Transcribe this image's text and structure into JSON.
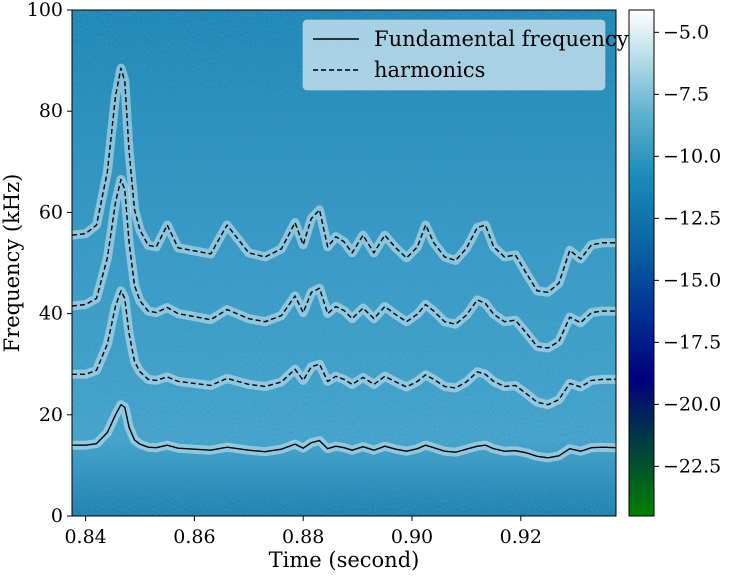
{
  "chart_data": {
    "type": "line",
    "background": "spectrogram",
    "xlabel": "Time (second)",
    "ylabel": "Frequency (kHz)",
    "xlim": [
      0.8375,
      0.9375
    ],
    "ylim": [
      0,
      100
    ],
    "xticks": [
      0.84,
      0.86,
      0.88,
      0.9,
      0.92
    ],
    "xtick_labels": [
      "0.84",
      "0.86",
      "0.88",
      "0.90",
      "0.92"
    ],
    "yticks": [
      0,
      20,
      40,
      60,
      80,
      100
    ],
    "ytick_labels": [
      "0",
      "20",
      "40",
      "60",
      "80",
      "100"
    ],
    "grid": false,
    "legend_position": "top-right",
    "legend": [
      {
        "label": "Fundamental frequency",
        "style": "solid"
      },
      {
        "label": "harmonics",
        "style": "dashed"
      }
    ],
    "colorbar": {
      "range": [
        -24.5,
        -4.1
      ],
      "ticks": [
        -5.0,
        -7.5,
        -10.0,
        -12.5,
        -15.0,
        -17.5,
        -20.0,
        -22.5
      ],
      "tick_labels": [
        "−5.0",
        "−7.5",
        "−10.0",
        "−12.5",
        "−15.0",
        "−17.5",
        "−20.0",
        "−22.5"
      ],
      "colormap": "ocean",
      "colors": [
        "#008000",
        "#00007e",
        "#004fa0",
        "#1183b5",
        "#5ab0cd",
        "#d9eef5",
        "#ffffff"
      ]
    },
    "series": [
      {
        "name": "Fundamental frequency",
        "style": "solid",
        "color": "#000000",
        "x": [
          0.8375,
          0.84,
          0.842,
          0.844,
          0.8455,
          0.8465,
          0.8472,
          0.848,
          0.849,
          0.85,
          0.8515,
          0.853,
          0.855,
          0.857,
          0.86,
          0.863,
          0.866,
          0.87,
          0.873,
          0.876,
          0.8785,
          0.88,
          0.8815,
          0.883,
          0.8845,
          0.886,
          0.8875,
          0.889,
          0.891,
          0.893,
          0.895,
          0.897,
          0.899,
          0.901,
          0.9025,
          0.904,
          0.906,
          0.908,
          0.91,
          0.912,
          0.9135,
          0.915,
          0.917,
          0.919,
          0.921,
          0.923,
          0.925,
          0.927,
          0.929,
          0.931,
          0.933,
          0.935,
          0.9375
        ],
        "y": [
          14.0,
          14.0,
          14.3,
          16.5,
          20.0,
          22.0,
          21.5,
          17.5,
          15.0,
          14.2,
          13.6,
          13.5,
          14.0,
          13.4,
          13.2,
          13.0,
          13.6,
          13.0,
          12.7,
          13.2,
          14.2,
          13.4,
          14.5,
          14.9,
          13.3,
          13.8,
          13.5,
          13.0,
          13.7,
          13.0,
          13.8,
          13.2,
          12.8,
          13.3,
          14.0,
          13.5,
          12.8,
          12.6,
          13.2,
          13.8,
          14.0,
          13.3,
          12.8,
          12.9,
          12.5,
          11.8,
          11.5,
          11.9,
          13.3,
          12.8,
          13.5,
          13.6,
          13.5
        ]
      },
      {
        "name": "harmonics",
        "style": "dashed",
        "color": "#000000",
        "x": [
          0.8375,
          0.84,
          0.842,
          0.844,
          0.8455,
          0.8465,
          0.8472,
          0.848,
          0.849,
          0.85,
          0.8515,
          0.853,
          0.855,
          0.857,
          0.86,
          0.863,
          0.866,
          0.87,
          0.873,
          0.876,
          0.8785,
          0.88,
          0.8815,
          0.883,
          0.8845,
          0.886,
          0.8875,
          0.889,
          0.891,
          0.893,
          0.895,
          0.897,
          0.899,
          0.901,
          0.9025,
          0.904,
          0.906,
          0.908,
          0.91,
          0.912,
          0.9135,
          0.915,
          0.917,
          0.919,
          0.921,
          0.923,
          0.925,
          0.927,
          0.929,
          0.931,
          0.933,
          0.935,
          0.9375
        ],
        "y": [
          28.0,
          28.0,
          28.8,
          34.0,
          41.5,
          44.5,
          43.0,
          36.0,
          30.5,
          28.5,
          27.0,
          26.8,
          27.5,
          26.6,
          26.2,
          25.8,
          27.2,
          26.0,
          25.6,
          26.5,
          29.0,
          26.8,
          29.5,
          30.0,
          26.6,
          27.6,
          27.0,
          26.0,
          27.4,
          26.0,
          27.6,
          26.5,
          25.5,
          26.6,
          27.9,
          27.0,
          25.6,
          25.3,
          26.5,
          28.5,
          28.0,
          26.6,
          25.6,
          25.8,
          24.2,
          22.5,
          22.0,
          23.0,
          26.2,
          25.5,
          26.8,
          27.0,
          27.0
        ]
      },
      {
        "name": "harmonics",
        "style": "dashed",
        "color": "#000000",
        "x": [
          0.8375,
          0.84,
          0.842,
          0.844,
          0.8455,
          0.8465,
          0.8472,
          0.848,
          0.849,
          0.85,
          0.8515,
          0.853,
          0.855,
          0.857,
          0.86,
          0.863,
          0.866,
          0.87,
          0.873,
          0.876,
          0.8785,
          0.88,
          0.8815,
          0.883,
          0.8845,
          0.886,
          0.8875,
          0.889,
          0.891,
          0.893,
          0.895,
          0.897,
          0.899,
          0.901,
          0.9025,
          0.904,
          0.906,
          0.908,
          0.91,
          0.912,
          0.9135,
          0.915,
          0.917,
          0.919,
          0.921,
          0.923,
          0.925,
          0.927,
          0.929,
          0.931,
          0.933,
          0.935,
          0.9375
        ],
        "y": [
          41.5,
          41.8,
          43.0,
          51.0,
          62.0,
          66.5,
          64.5,
          54.0,
          45.5,
          42.5,
          40.5,
          40.2,
          41.2,
          40.0,
          39.4,
          38.8,
          40.8,
          39.0,
          38.4,
          39.6,
          43.5,
          40.2,
          44.2,
          45.0,
          40.0,
          41.4,
          40.6,
          39.0,
          41.1,
          39.0,
          41.4,
          39.8,
          38.4,
          39.9,
          41.8,
          40.5,
          38.4,
          37.9,
          39.7,
          42.7,
          42.0,
          39.9,
          38.4,
          38.7,
          36.2,
          33.5,
          33.2,
          34.5,
          39.3,
          38.2,
          40.2,
          40.5,
          40.5
        ]
      },
      {
        "name": "harmonics",
        "style": "dashed",
        "color": "#000000",
        "x": [
          0.8375,
          0.84,
          0.842,
          0.844,
          0.8455,
          0.8465,
          0.8472,
          0.848,
          0.849,
          0.85,
          0.8515,
          0.853,
          0.855,
          0.857,
          0.86,
          0.863,
          0.866,
          0.87,
          0.873,
          0.876,
          0.8785,
          0.88,
          0.8815,
          0.883,
          0.8845,
          0.886,
          0.8875,
          0.889,
          0.891,
          0.893,
          0.895,
          0.897,
          0.899,
          0.901,
          0.9025,
          0.904,
          0.906,
          0.908,
          0.91,
          0.912,
          0.9135,
          0.915,
          0.917,
          0.919,
          0.921,
          0.923,
          0.925,
          0.927,
          0.929,
          0.931,
          0.933,
          0.935,
          0.9375
        ],
        "y": [
          55.5,
          55.8,
          57.5,
          68.0,
          83.0,
          88.5,
          86.0,
          72.0,
          60.5,
          56.5,
          53.5,
          53.2,
          57.5,
          53.0,
          52.4,
          51.8,
          57.5,
          52.0,
          51.2,
          52.8,
          58.0,
          53.6,
          58.8,
          60.5,
          53.2,
          55.2,
          54.2,
          52.0,
          55.5,
          52.0,
          55.5,
          53.0,
          51.0,
          53.2,
          57.5,
          54.0,
          51.2,
          50.5,
          52.9,
          57.0,
          57.5,
          53.2,
          51.2,
          51.6,
          48.0,
          44.5,
          44.2,
          46.0,
          52.5,
          50.8,
          53.6,
          54.0,
          54.0
        ]
      }
    ]
  }
}
